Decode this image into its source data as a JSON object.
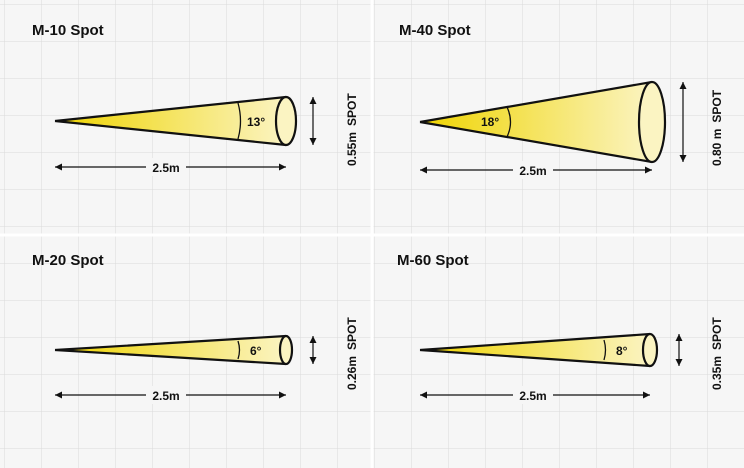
{
  "colors": {
    "background": "#f6f6f6",
    "grid": "#dadada",
    "separator": "#ffffff",
    "beam_tip": "#efd400",
    "beam_end": "#fbf4c2",
    "outline": "#111111"
  },
  "panels": [
    {
      "title": "M-10 Spot",
      "angle": "13°",
      "angle_deg": 13,
      "distance": "2.5m",
      "diameter": "0.55m",
      "mode": "SPOT"
    },
    {
      "title": "M-40 Spot",
      "angle": "18°",
      "angle_deg": 18,
      "distance": "2.5m",
      "diameter": "0.80 m",
      "mode": "SPOT"
    },
    {
      "title": "M-20 Spot",
      "angle": "6°",
      "angle_deg": 6,
      "distance": "2.5m",
      "diameter": "0.26m",
      "mode": "SPOT"
    },
    {
      "title": "M-60 Spot",
      "angle": "8°",
      "angle_deg": 8,
      "distance": "2.5m",
      "diameter": "0.35m",
      "mode": "SPOT"
    }
  ]
}
